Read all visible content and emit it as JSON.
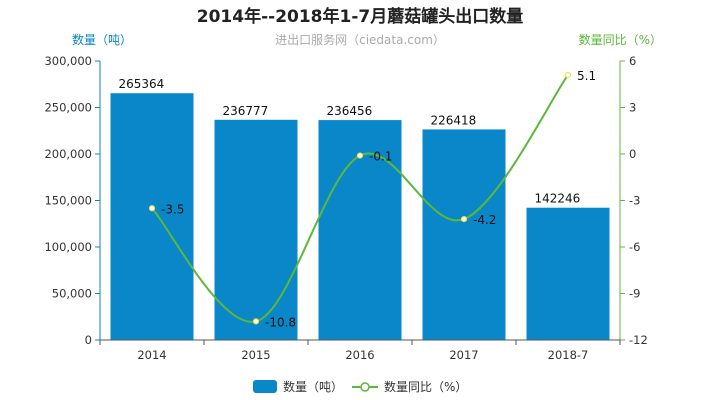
{
  "chart_data": {
    "type": "bar",
    "title": "2014年--2018年1-7月蘑菇罐头出口数量",
    "subtitle": "进出口服务网（ciedata.com）",
    "categories": [
      "2014",
      "2015",
      "2016",
      "2017",
      "2018-7"
    ],
    "series": [
      {
        "name": "数量（吨）",
        "type": "bar",
        "axis": "left",
        "values": [
          265364,
          236777,
          236456,
          226418,
          142246
        ],
        "labels": [
          "265364",
          "236777",
          "236456",
          "226418",
          "142246"
        ],
        "color": "#0a87c8"
      },
      {
        "name": "数量同比（%）",
        "type": "line",
        "axis": "right",
        "values": [
          -3.5,
          -10.8,
          -0.1,
          -4.2,
          5.1
        ],
        "labels": [
          "-3.5",
          "-10.8",
          "-0.1",
          "-4.2",
          "5.1"
        ],
        "color": "#5cb83a"
      }
    ],
    "y_left": {
      "label": "数量（吨）",
      "ylim": [
        0,
        300000
      ],
      "ticks": [
        0,
        50000,
        100000,
        150000,
        200000,
        250000,
        300000
      ],
      "tick_labels": [
        "0",
        "50,000",
        "100,000",
        "150,000",
        "200,000",
        "250,000",
        "300,000"
      ],
      "color": "#0a87c8"
    },
    "y_right": {
      "label": "数量同比（%）",
      "ylim": [
        -12,
        6
      ],
      "ticks": [
        -12,
        -9,
        -6,
        -3,
        0,
        3,
        6
      ],
      "tick_labels": [
        "-12",
        "-9",
        "-6",
        "-3",
        "0",
        "3",
        "6"
      ],
      "color": "#5cb83a"
    },
    "grid": false,
    "legend_position": "bottom-center"
  }
}
